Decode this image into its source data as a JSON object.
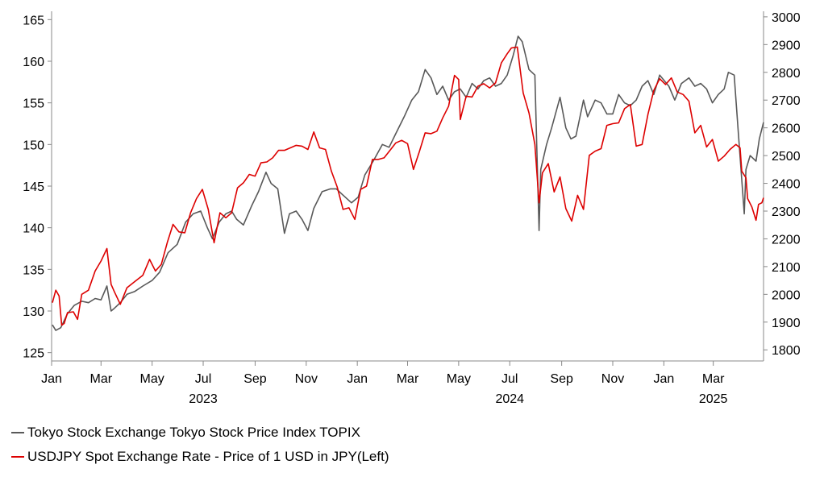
{
  "chart_data": {
    "type": "line",
    "title": "",
    "xlabel": "",
    "left_axis": {
      "min": 124,
      "max": 166,
      "ticks": [
        125,
        130,
        135,
        140,
        145,
        150,
        155,
        160,
        165
      ]
    },
    "right_axis": {
      "min": 1760,
      "max": 3020,
      "ticks": [
        1800,
        1900,
        2000,
        2100,
        2200,
        2300,
        2400,
        2500,
        2600,
        2700,
        2800,
        2900,
        3000
      ]
    },
    "x_range": [
      "2023-01-01",
      "2025-04-30"
    ],
    "month_ticks": [
      {
        "date": "2023-01-01",
        "label": "Jan"
      },
      {
        "date": "2023-03-01",
        "label": "Mar"
      },
      {
        "date": "2023-05-01",
        "label": "May"
      },
      {
        "date": "2023-07-01",
        "label": "Jul"
      },
      {
        "date": "2023-09-01",
        "label": "Sep"
      },
      {
        "date": "2023-11-01",
        "label": "Nov"
      },
      {
        "date": "2024-01-01",
        "label": "Jan"
      },
      {
        "date": "2024-03-01",
        "label": "Mar"
      },
      {
        "date": "2024-05-01",
        "label": "May"
      },
      {
        "date": "2024-07-01",
        "label": "Jul"
      },
      {
        "date": "2024-09-01",
        "label": "Sep"
      },
      {
        "date": "2024-11-01",
        "label": "Nov"
      },
      {
        "date": "2025-01-01",
        "label": "Jan"
      },
      {
        "date": "2025-03-01",
        "label": "Mar"
      }
    ],
    "year_labels": [
      {
        "date": "2023-07-01",
        "label": "2023"
      },
      {
        "date": "2024-07-01",
        "label": "2024"
      },
      {
        "date": "2025-03-01",
        "label": "2025"
      }
    ],
    "grid": false,
    "legend_position": "bottom-left",
    "series": [
      {
        "name": "Tokyo Stock Exchange Tokyo Stock Price Index TOPIX",
        "axis": "right",
        "color": "#595959",
        "points": [
          [
            "2023-01-02",
            1890
          ],
          [
            "2023-01-06",
            1870
          ],
          [
            "2023-01-12",
            1880
          ],
          [
            "2023-01-20",
            1930
          ],
          [
            "2023-01-28",
            1960
          ],
          [
            "2023-02-06",
            1975
          ],
          [
            "2023-02-14",
            1970
          ],
          [
            "2023-02-22",
            1985
          ],
          [
            "2023-03-01",
            1980
          ],
          [
            "2023-03-08",
            2030
          ],
          [
            "2023-03-13",
            1940
          ],
          [
            "2023-03-17",
            1950
          ],
          [
            "2023-03-24",
            1970
          ],
          [
            "2023-04-01",
            2000
          ],
          [
            "2023-04-10",
            2010
          ],
          [
            "2023-04-20",
            2030
          ],
          [
            "2023-05-01",
            2050
          ],
          [
            "2023-05-10",
            2080
          ],
          [
            "2023-05-20",
            2150
          ],
          [
            "2023-05-31",
            2180
          ],
          [
            "2023-06-10",
            2260
          ],
          [
            "2023-06-19",
            2290
          ],
          [
            "2023-06-28",
            2300
          ],
          [
            "2023-07-06",
            2240
          ],
          [
            "2023-07-12",
            2200
          ],
          [
            "2023-07-20",
            2260
          ],
          [
            "2023-07-28",
            2290
          ],
          [
            "2023-08-04",
            2300
          ],
          [
            "2023-08-10",
            2270
          ],
          [
            "2023-08-18",
            2250
          ],
          [
            "2023-08-28",
            2320
          ],
          [
            "2023-09-05",
            2370
          ],
          [
            "2023-09-14",
            2440
          ],
          [
            "2023-09-20",
            2400
          ],
          [
            "2023-09-28",
            2380
          ],
          [
            "2023-10-04",
            2260
          ],
          [
            "2023-10-06",
            2220
          ],
          [
            "2023-10-12",
            2290
          ],
          [
            "2023-10-20",
            2300
          ],
          [
            "2023-10-27",
            2270
          ],
          [
            "2023-11-03",
            2230
          ],
          [
            "2023-11-10",
            2310
          ],
          [
            "2023-11-20",
            2370
          ],
          [
            "2023-11-30",
            2380
          ],
          [
            "2023-12-07",
            2380
          ],
          [
            "2023-12-14",
            2360
          ],
          [
            "2023-12-25",
            2330
          ],
          [
            "2024-01-02",
            2350
          ],
          [
            "2024-01-10",
            2430
          ],
          [
            "2024-01-20",
            2480
          ],
          [
            "2024-01-31",
            2540
          ],
          [
            "2024-02-08",
            2530
          ],
          [
            "2024-02-16",
            2580
          ],
          [
            "2024-02-26",
            2640
          ],
          [
            "2024-03-06",
            2700
          ],
          [
            "2024-03-14",
            2730
          ],
          [
            "2024-03-22",
            2810
          ],
          [
            "2024-03-29",
            2780
          ],
          [
            "2024-04-05",
            2720
          ],
          [
            "2024-04-12",
            2750
          ],
          [
            "2024-04-19",
            2700
          ],
          [
            "2024-04-26",
            2730
          ],
          [
            "2024-05-03",
            2740
          ],
          [
            "2024-05-10",
            2710
          ],
          [
            "2024-05-17",
            2760
          ],
          [
            "2024-05-24",
            2740
          ],
          [
            "2024-05-31",
            2770
          ],
          [
            "2024-06-07",
            2780
          ],
          [
            "2024-06-14",
            2750
          ],
          [
            "2024-06-21",
            2760
          ],
          [
            "2024-06-28",
            2790
          ],
          [
            "2024-07-05",
            2860
          ],
          [
            "2024-07-11",
            2930
          ],
          [
            "2024-07-16",
            2910
          ],
          [
            "2024-07-24",
            2810
          ],
          [
            "2024-07-31",
            2790
          ],
          [
            "2024-08-02",
            2560
          ],
          [
            "2024-08-05",
            2230
          ],
          [
            "2024-08-07",
            2450
          ],
          [
            "2024-08-14",
            2540
          ],
          [
            "2024-08-20",
            2600
          ],
          [
            "2024-08-30",
            2710
          ],
          [
            "2024-09-06",
            2600
          ],
          [
            "2024-09-12",
            2560
          ],
          [
            "2024-09-18",
            2570
          ],
          [
            "2024-09-27",
            2700
          ],
          [
            "2024-10-02",
            2640
          ],
          [
            "2024-10-11",
            2700
          ],
          [
            "2024-10-18",
            2690
          ],
          [
            "2024-10-25",
            2650
          ],
          [
            "2024-11-01",
            2650
          ],
          [
            "2024-11-08",
            2720
          ],
          [
            "2024-11-15",
            2690
          ],
          [
            "2024-11-22",
            2680
          ],
          [
            "2024-11-29",
            2700
          ],
          [
            "2024-12-06",
            2750
          ],
          [
            "2024-12-13",
            2770
          ],
          [
            "2024-12-20",
            2720
          ],
          [
            "2024-12-27",
            2790
          ],
          [
            "2025-01-07",
            2750
          ],
          [
            "2025-01-14",
            2700
          ],
          [
            "2025-01-22",
            2760
          ],
          [
            "2025-01-31",
            2780
          ],
          [
            "2025-02-07",
            2750
          ],
          [
            "2025-02-14",
            2760
          ],
          [
            "2025-02-21",
            2740
          ],
          [
            "2025-02-28",
            2690
          ],
          [
            "2025-03-07",
            2720
          ],
          [
            "2025-03-14",
            2740
          ],
          [
            "2025-03-19",
            2800
          ],
          [
            "2025-03-26",
            2790
          ],
          [
            "2025-03-31",
            2580
          ],
          [
            "2025-04-07",
            2290
          ],
          [
            "2025-04-09",
            2450
          ],
          [
            "2025-04-14",
            2500
          ],
          [
            "2025-04-21",
            2480
          ],
          [
            "2025-04-25",
            2560
          ],
          [
            "2025-04-30",
            2620
          ]
        ]
      },
      {
        "name": "USDJPY Spot Exchange Rate - Price of 1 USD in JPY(Left)",
        "axis": "left",
        "color": "#dd0000",
        "points": [
          [
            "2023-01-02",
            131.0
          ],
          [
            "2023-01-06",
            132.5
          ],
          [
            "2023-01-10",
            131.8
          ],
          [
            "2023-01-13",
            128.3
          ],
          [
            "2023-01-16",
            128.5
          ],
          [
            "2023-01-20",
            129.8
          ],
          [
            "2023-01-27",
            129.9
          ],
          [
            "2023-02-01",
            129.0
          ],
          [
            "2023-02-06",
            132.0
          ],
          [
            "2023-02-14",
            132.5
          ],
          [
            "2023-02-22",
            134.8
          ],
          [
            "2023-03-01",
            136.0
          ],
          [
            "2023-03-08",
            137.5
          ],
          [
            "2023-03-13",
            133.2
          ],
          [
            "2023-03-17",
            132.3
          ],
          [
            "2023-03-24",
            130.8
          ],
          [
            "2023-04-01",
            132.8
          ],
          [
            "2023-04-10",
            133.5
          ],
          [
            "2023-04-20",
            134.3
          ],
          [
            "2023-04-28",
            136.2
          ],
          [
            "2023-05-05",
            134.8
          ],
          [
            "2023-05-12",
            135.6
          ],
          [
            "2023-05-19",
            138.2
          ],
          [
            "2023-05-26",
            140.4
          ],
          [
            "2023-06-02",
            139.5
          ],
          [
            "2023-06-09",
            139.4
          ],
          [
            "2023-06-16",
            141.8
          ],
          [
            "2023-06-23",
            143.5
          ],
          [
            "2023-06-30",
            144.6
          ],
          [
            "2023-07-07",
            142.2
          ],
          [
            "2023-07-14",
            138.2
          ],
          [
            "2023-07-21",
            141.8
          ],
          [
            "2023-07-28",
            141.2
          ],
          [
            "2023-08-04",
            141.8
          ],
          [
            "2023-08-11",
            144.8
          ],
          [
            "2023-08-18",
            145.4
          ],
          [
            "2023-08-25",
            146.4
          ],
          [
            "2023-09-01",
            146.2
          ],
          [
            "2023-09-08",
            147.8
          ],
          [
            "2023-09-15",
            147.9
          ],
          [
            "2023-09-22",
            148.4
          ],
          [
            "2023-09-29",
            149.3
          ],
          [
            "2023-10-06",
            149.3
          ],
          [
            "2023-10-13",
            149.6
          ],
          [
            "2023-10-20",
            149.9
          ],
          [
            "2023-10-27",
            149.8
          ],
          [
            "2023-11-03",
            149.4
          ],
          [
            "2023-11-10",
            151.5
          ],
          [
            "2023-11-17",
            149.6
          ],
          [
            "2023-11-24",
            149.4
          ],
          [
            "2023-12-01",
            146.8
          ],
          [
            "2023-12-08",
            144.9
          ],
          [
            "2023-12-15",
            142.2
          ],
          [
            "2023-12-22",
            142.4
          ],
          [
            "2023-12-29",
            141.0
          ],
          [
            "2024-01-05",
            144.6
          ],
          [
            "2024-01-12",
            145.0
          ],
          [
            "2024-01-19",
            148.2
          ],
          [
            "2024-01-26",
            148.2
          ],
          [
            "2024-02-02",
            148.4
          ],
          [
            "2024-02-09",
            149.3
          ],
          [
            "2024-02-16",
            150.2
          ],
          [
            "2024-02-23",
            150.5
          ],
          [
            "2024-03-01",
            150.1
          ],
          [
            "2024-03-08",
            147.0
          ],
          [
            "2024-03-15",
            149.1
          ],
          [
            "2024-03-22",
            151.4
          ],
          [
            "2024-03-29",
            151.3
          ],
          [
            "2024-04-05",
            151.6
          ],
          [
            "2024-04-12",
            153.2
          ],
          [
            "2024-04-19",
            154.6
          ],
          [
            "2024-04-26",
            158.3
          ],
          [
            "2024-05-01",
            157.8
          ],
          [
            "2024-05-03",
            153.0
          ],
          [
            "2024-05-10",
            155.8
          ],
          [
            "2024-05-17",
            155.7
          ],
          [
            "2024-05-24",
            157.0
          ],
          [
            "2024-05-31",
            157.3
          ],
          [
            "2024-06-07",
            156.8
          ],
          [
            "2024-06-14",
            157.4
          ],
          [
            "2024-06-21",
            159.8
          ],
          [
            "2024-06-28",
            160.9
          ],
          [
            "2024-07-03",
            161.6
          ],
          [
            "2024-07-10",
            161.7
          ],
          [
            "2024-07-17",
            156.2
          ],
          [
            "2024-07-24",
            153.8
          ],
          [
            "2024-07-31",
            150.0
          ],
          [
            "2024-08-05",
            143.0
          ],
          [
            "2024-08-09",
            146.6
          ],
          [
            "2024-08-16",
            147.7
          ],
          [
            "2024-08-23",
            144.3
          ],
          [
            "2024-08-30",
            146.1
          ],
          [
            "2024-09-06",
            142.3
          ],
          [
            "2024-09-13",
            140.8
          ],
          [
            "2024-09-20",
            143.9
          ],
          [
            "2024-09-27",
            142.2
          ],
          [
            "2024-10-04",
            148.7
          ],
          [
            "2024-10-11",
            149.2
          ],
          [
            "2024-10-18",
            149.5
          ],
          [
            "2024-10-25",
            152.3
          ],
          [
            "2024-11-01",
            152.5
          ],
          [
            "2024-11-08",
            152.6
          ],
          [
            "2024-11-15",
            154.3
          ],
          [
            "2024-11-22",
            154.8
          ],
          [
            "2024-11-29",
            149.8
          ],
          [
            "2024-12-06",
            150.0
          ],
          [
            "2024-12-13",
            153.6
          ],
          [
            "2024-12-20",
            156.5
          ],
          [
            "2024-12-27",
            157.9
          ],
          [
            "2025-01-03",
            157.2
          ],
          [
            "2025-01-10",
            158.0
          ],
          [
            "2025-01-17",
            156.3
          ],
          [
            "2025-01-24",
            156.0
          ],
          [
            "2025-01-31",
            155.2
          ],
          [
            "2025-02-07",
            151.4
          ],
          [
            "2025-02-14",
            152.3
          ],
          [
            "2025-02-21",
            149.7
          ],
          [
            "2025-02-28",
            150.6
          ],
          [
            "2025-03-07",
            148.0
          ],
          [
            "2025-03-14",
            148.6
          ],
          [
            "2025-03-21",
            149.4
          ],
          [
            "2025-03-28",
            150.0
          ],
          [
            "2025-04-02",
            149.6
          ],
          [
            "2025-04-04",
            146.8
          ],
          [
            "2025-04-09",
            146.0
          ],
          [
            "2025-04-11",
            143.5
          ],
          [
            "2025-04-16",
            142.5
          ],
          [
            "2025-04-21",
            140.9
          ],
          [
            "2025-04-24",
            142.8
          ],
          [
            "2025-04-28",
            143.0
          ],
          [
            "2025-04-30",
            143.6
          ]
        ]
      }
    ]
  }
}
